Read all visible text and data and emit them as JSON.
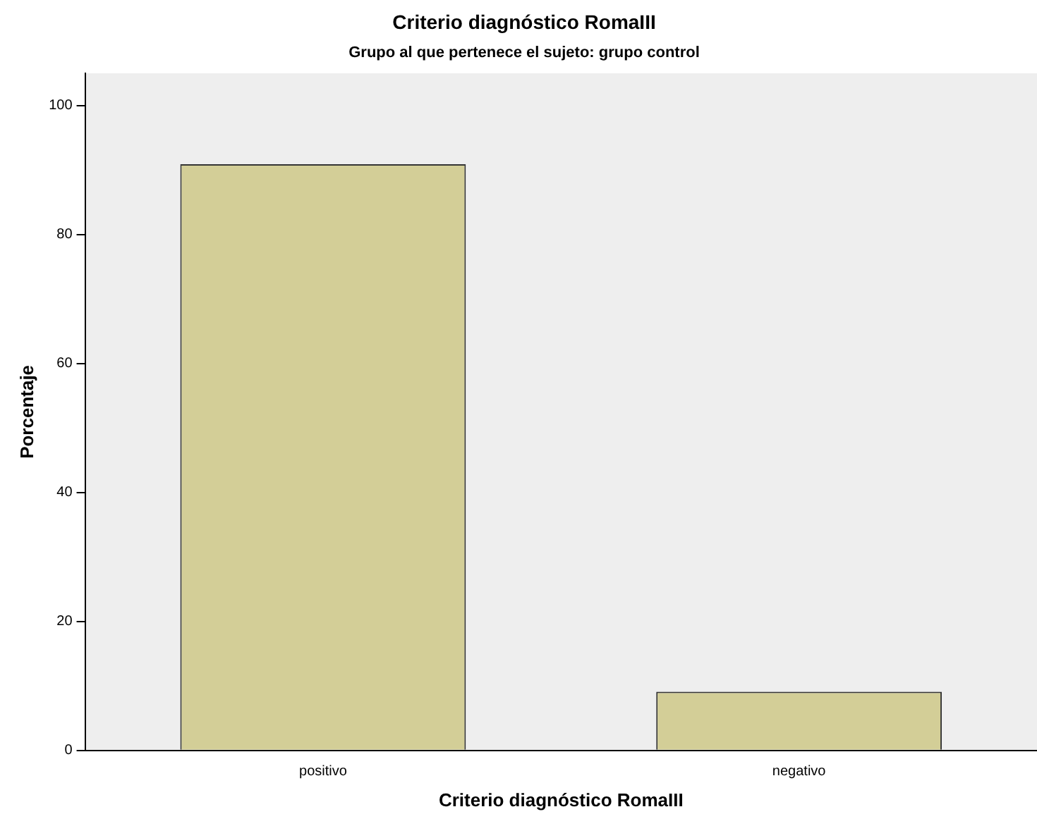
{
  "chart_data": {
    "type": "bar",
    "title": "Criterio diagnóstico RomaIII",
    "subtitle": "Grupo al que pertenece el sujeto: grupo control",
    "xlabel": "Criterio diagnóstico RomaIII",
    "ylabel": "Porcentaje",
    "categories": [
      "positivo",
      "negativo"
    ],
    "values": [
      90.9,
      9.1
    ],
    "color": "#d3ce97",
    "ylim": [
      0,
      105
    ],
    "yticks": [
      0,
      20,
      40,
      60,
      80,
      100
    ],
    "grid": false,
    "legend": false
  }
}
